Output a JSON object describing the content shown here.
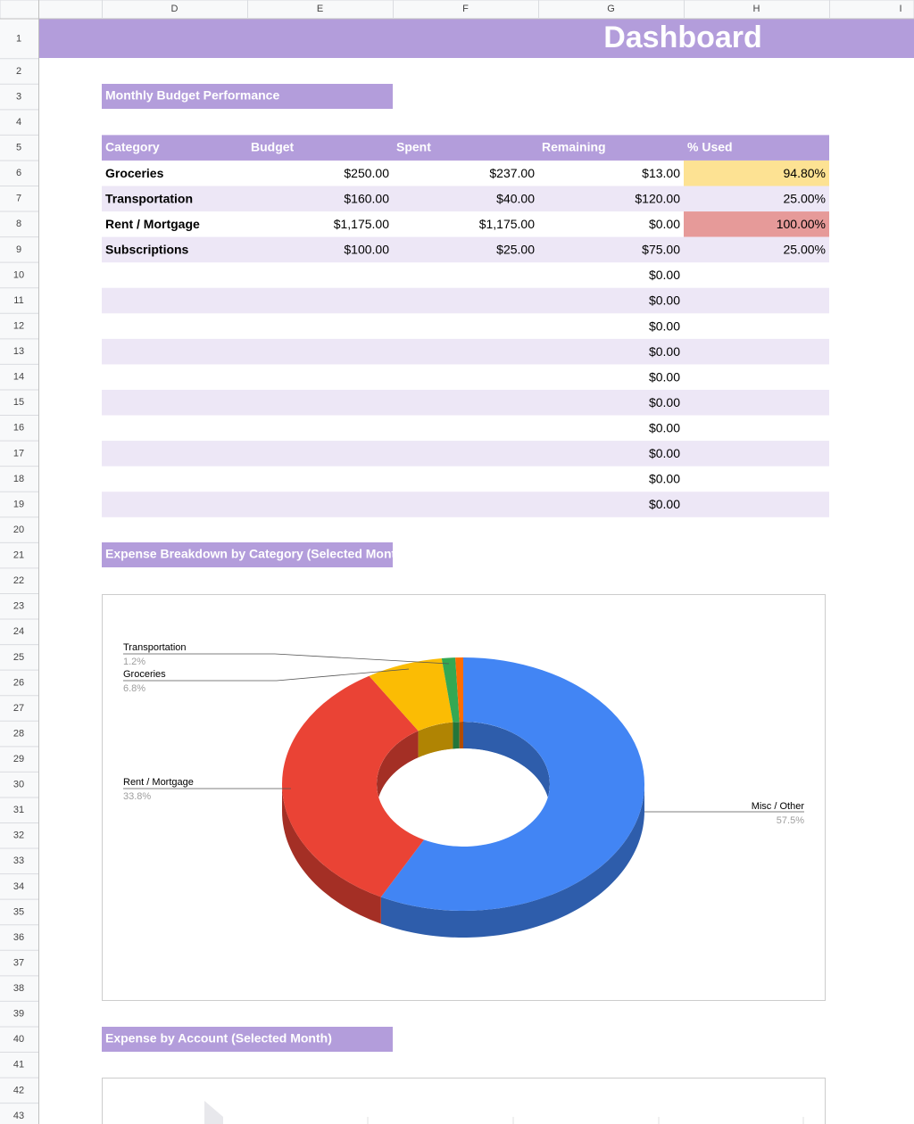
{
  "columns": [
    "D",
    "E",
    "F",
    "G",
    "H",
    "I"
  ],
  "rows": [
    1,
    2,
    3,
    4,
    5,
    6,
    7,
    8,
    9,
    10,
    11,
    12,
    13,
    14,
    15,
    16,
    17,
    18,
    19,
    20,
    21,
    22,
    23,
    24,
    25,
    26,
    27,
    28,
    29,
    30,
    31,
    32,
    33,
    34,
    35,
    36,
    37,
    38,
    39,
    40,
    41,
    42,
    43
  ],
  "title": "Dashboard",
  "budget_section": {
    "heading": "Monthly Budget Performance",
    "table": {
      "header": [
        "Category",
        "Budget",
        "Spent",
        "Remaining",
        "% Used"
      ],
      "rows": [
        [
          "Groceries",
          "$250.00",
          "$237.00",
          "$13.00",
          "94.80%"
        ],
        [
          "Transportation",
          "$160.00",
          "$40.00",
          "$120.00",
          "25.00%"
        ],
        [
          "Rent / Mortgage",
          "$1,175.00",
          "$1,175.00",
          "$0.00",
          "100.00%"
        ],
        [
          "Subscriptions",
          "$100.00",
          "$25.00",
          "$75.00",
          "25.00%"
        ],
        [
          null,
          null,
          null,
          "$0.00",
          null
        ],
        [
          null,
          null,
          null,
          "$0.00",
          null
        ],
        [
          null,
          null,
          null,
          "$0.00",
          null
        ],
        [
          null,
          null,
          null,
          "$0.00",
          null
        ],
        [
          null,
          null,
          null,
          "$0.00",
          null
        ],
        [
          null,
          null,
          null,
          "$0.00",
          null
        ],
        [
          null,
          null,
          null,
          "$0.00",
          null
        ],
        [
          null,
          null,
          null,
          "$0.00",
          null
        ],
        [
          null,
          null,
          null,
          "$0.00",
          null
        ],
        [
          null,
          null,
          null,
          "$0.00",
          null
        ]
      ]
    }
  },
  "breakdown_section": {
    "heading": "Expense Breakdown by Category (Selected Month)",
    "chart": {
      "type": "pie",
      "categories": [
        "Misc / Other",
        "Rent / Mortgage",
        "Groceries",
        "Transportation",
        null
      ],
      "values": [
        57.5,
        33.8,
        6.8,
        1.2,
        0.7
      ],
      "value_labels": [
        "57.5%",
        "33.8%",
        "6.8%",
        "1.2%",
        null
      ],
      "colors": [
        "#4285f4",
        "#ea4335",
        "#fbbc04",
        "#34a853",
        "#ff6d01"
      ]
    }
  },
  "account_section": {
    "heading": "Expense by Account (Selected Month)"
  }
}
